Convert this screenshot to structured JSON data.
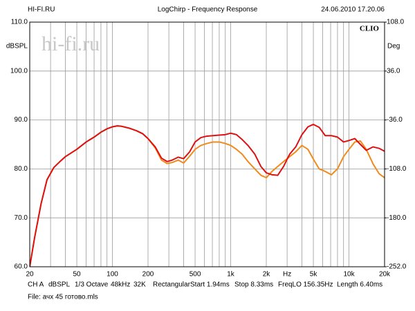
{
  "chart_data": {
    "type": "line",
    "source": "HI-FI.RU",
    "title": "LogChirp - Frequency Response",
    "timestamp": "24.06.2010 17.20.06",
    "brand": "CLIO",
    "watermark": "hi-fi.ru",
    "ylabel": "dBSPL",
    "y2label": "Deg",
    "xscale": "log",
    "grid": true,
    "xlim": [
      20,
      20000
    ],
    "xticks": [
      20,
      50,
      100,
      200,
      500,
      {
        "value": 1000,
        "label": "1k"
      },
      {
        "value": 2000,
        "label": "2k"
      },
      {
        "value": 3000,
        "label": "Hz"
      },
      {
        "value": 5000,
        "label": "5k"
      },
      {
        "value": 10000,
        "label": "10k"
      },
      {
        "value": 20000,
        "label": "20k"
      }
    ],
    "xminorticks": [
      30,
      40,
      60,
      70,
      80,
      90,
      300,
      400,
      600,
      700,
      800,
      900,
      4000,
      6000,
      7000,
      8000,
      9000
    ],
    "ylim": [
      60,
      110
    ],
    "yticks": [
      {
        "value": 60,
        "label": "60.0"
      },
      {
        "value": 70,
        "label": "70.0"
      },
      {
        "value": 80,
        "label": "80.0"
      },
      {
        "value": 90,
        "label": "90.0"
      },
      {
        "value": 100,
        "label": "100.0"
      },
      {
        "value": 110,
        "label": "110.0"
      }
    ],
    "y2lim": [
      -252,
      108
    ],
    "y2ticks": [
      {
        "value": -252,
        "label": "-252.0"
      },
      {
        "value": -180,
        "label": "-180.0"
      },
      {
        "value": -108,
        "label": "-108.0"
      },
      {
        "value": -36,
        "label": "-36.0"
      },
      {
        "value": 36,
        "label": "36.0"
      },
      {
        "value": 108,
        "label": "108.0"
      }
    ],
    "x": [
      20,
      22,
      25,
      28,
      32,
      36,
      40,
      50,
      60,
      70,
      80,
      90,
      100,
      110,
      120,
      140,
      160,
      180,
      200,
      230,
      260,
      290,
      320,
      360,
      400,
      450,
      500,
      560,
      630,
      710,
      800,
      900,
      1000,
      1120,
      1250,
      1400,
      1600,
      1800,
      2000,
      2240,
      2500,
      2800,
      3150,
      3550,
      4000,
      4500,
      5000,
      5600,
      6300,
      7100,
      8000,
      9000,
      10000,
      11200,
      12500,
      14000,
      16000,
      18000,
      20000
    ],
    "series": [
      {
        "color": "#dd1111",
        "values": [
          60,
          66,
          73,
          77.8,
          80.3,
          81.5,
          82.5,
          84,
          85.5,
          86.5,
          87.5,
          88.2,
          88.6,
          88.8,
          88.7,
          88.3,
          87.8,
          87.2,
          86.2,
          84.5,
          82.2,
          81.5,
          81.8,
          82.4,
          82.1,
          83.5,
          85.5,
          86.4,
          86.7,
          86.8,
          86.9,
          87,
          87.3,
          87,
          86,
          84.8,
          83,
          80.5,
          79.2,
          78.8,
          78.7,
          80.5,
          83,
          84.5,
          87,
          88.6,
          89.1,
          88.5,
          86.8,
          86.8,
          86.5,
          85.5,
          85.8,
          86.2,
          85,
          83.8,
          84.5,
          84.2,
          83.6
        ]
      },
      {
        "color": "#f08a1a",
        "values": [
          60,
          66,
          73,
          77.8,
          80.3,
          81.5,
          82.5,
          84,
          85.5,
          86.5,
          87.5,
          88.2,
          88.6,
          88.8,
          88.7,
          88.3,
          87.8,
          87.2,
          86.2,
          84.3,
          81.8,
          81.1,
          81.3,
          81.8,
          81.2,
          82.6,
          84,
          84.8,
          85.2,
          85.5,
          85.5,
          85.2,
          84.8,
          84,
          83,
          81.5,
          80,
          78.7,
          78.2,
          79.5,
          80.5,
          81.5,
          82.5,
          83.5,
          84.8,
          84,
          82,
          80,
          79.5,
          78.8,
          80,
          82.5,
          84,
          85.5,
          85.7,
          84,
          81,
          79,
          78.2
        ]
      }
    ],
    "footer": [
      "CH A",
      "dBSPL",
      "1/3 Octave",
      "48kHz",
      "32K",
      "Rectangular",
      "Start 1.94ms",
      "Stop 8.33ms",
      "FreqLO 156.35Hz",
      "Length 6.40ms"
    ],
    "file": "File: ачх 45 готово.mls"
  }
}
